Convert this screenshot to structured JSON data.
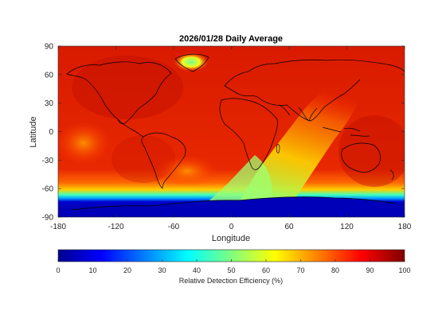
{
  "title": "2026/01/28 Daily Average",
  "xlabel": "Longitude",
  "ylabel": "Latitude",
  "x_ticks": [
    "-180",
    "-120",
    "-60",
    "0",
    "60",
    "120",
    "180"
  ],
  "y_ticks": [
    "90",
    "60",
    "30",
    "0",
    "-30",
    "-60",
    "-90"
  ],
  "colorbar": {
    "label": "Relative Detection Efficiency (%)",
    "ticks": [
      "0",
      "10",
      "20",
      "30",
      "40",
      "50",
      "60",
      "70",
      "80",
      "90",
      "100"
    ],
    "colormap": "jet",
    "range": [
      0,
      100
    ]
  },
  "map": {
    "projection": "equirectangular",
    "lon_range": [
      -180,
      180
    ],
    "lat_range": [
      -90,
      90
    ],
    "field_description_values": {
      "background_level": 88,
      "antarctic_level": 5,
      "southern_ocean_band_level": 40,
      "greenland_min_level": 65
    }
  }
}
